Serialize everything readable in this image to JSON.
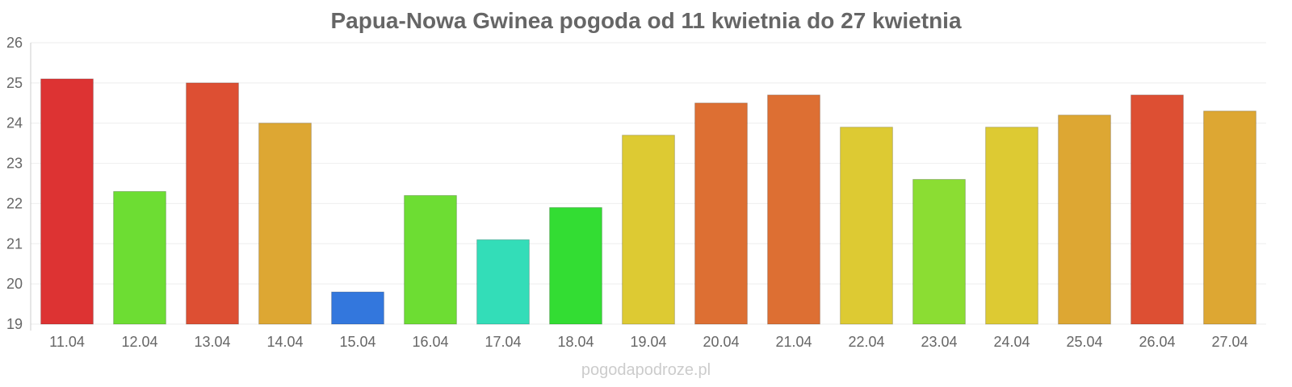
{
  "title": "Papua-Nowa Gwinea pogoda od 11 kwietnia do 27 kwietnia",
  "watermark": "pogodapodroze.pl",
  "chart_data": {
    "type": "bar",
    "categories": [
      "11.04",
      "12.04",
      "13.04",
      "14.04",
      "15.04",
      "16.04",
      "17.04",
      "18.04",
      "19.04",
      "20.04",
      "21.04",
      "22.04",
      "23.04",
      "24.04",
      "25.04",
      "26.04",
      "27.04"
    ],
    "values": [
      25.1,
      22.3,
      25.0,
      24.0,
      19.8,
      22.2,
      21.1,
      21.9,
      23.7,
      24.5,
      24.7,
      23.9,
      22.6,
      23.9,
      24.2,
      24.7,
      24.3
    ],
    "colors": [
      "#dd3333",
      "#6ddd33",
      "#dd4f33",
      "#dda733",
      "#3377dd",
      "#6ddd33",
      "#33ddb8",
      "#33dd33",
      "#ddca33",
      "#dd6f33",
      "#dd6f33",
      "#ddca33",
      "#8bdd33",
      "#ddca33",
      "#dda733",
      "#dd4f33",
      "#dda733"
    ],
    "ylim": [
      19,
      26
    ],
    "yticks": [
      19,
      20,
      21,
      22,
      23,
      24,
      25,
      26
    ],
    "grid": true,
    "xlabel": "",
    "ylabel": ""
  }
}
